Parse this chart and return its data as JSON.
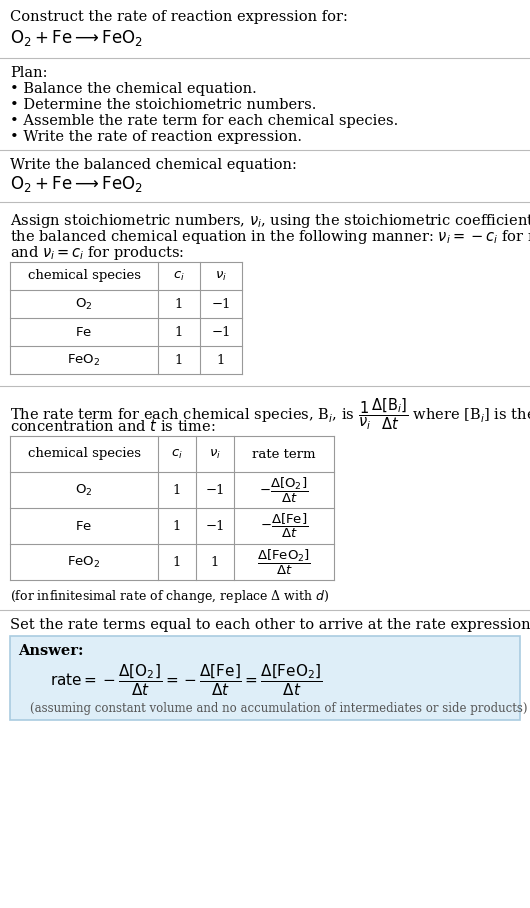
{
  "bg_color": "#ffffff",
  "text_color": "#000000",
  "line_color": "#bbbbbb",
  "table_line_color": "#999999",
  "section1_title": "Construct the rate of reaction expression for:",
  "section1_eq": "$\\mathrm{O_2 + Fe \\longrightarrow FeO_2}$",
  "section2_title": "Plan:",
  "section2_bullets": [
    "• Balance the chemical equation.",
    "• Determine the stoichiometric numbers.",
    "• Assemble the rate term for each chemical species.",
    "• Write the rate of reaction expression."
  ],
  "section3_title": "Write the balanced chemical equation:",
  "section3_eq": "$\\mathrm{O_2 + Fe \\longrightarrow FeO_2}$",
  "section4_line1": "Assign stoichiometric numbers, $\\nu_i$, using the stoichiometric coefficients, $c_i$, from",
  "section4_line2": "the balanced chemical equation in the following manner: $\\nu_i = -c_i$ for reactants",
  "section4_line3": "and $\\nu_i = c_i$ for products:",
  "table1_headers": [
    "chemical species",
    "$c_i$",
    "$\\nu_i$"
  ],
  "table1_rows": [
    [
      "$\\mathrm{O_2}$",
      "1",
      "−1"
    ],
    [
      "$\\mathrm{Fe}$",
      "1",
      "−1"
    ],
    [
      "$\\mathrm{FeO_2}$",
      "1",
      "1"
    ]
  ],
  "section5_line1a": "The rate term for each chemical species, B",
  "section5_line1b": ", is $\\dfrac{1}{\\nu_i}\\dfrac{\\Delta[\\mathrm{B}_i]}{\\Delta t}$ where [B",
  "section5_line1c": "] is the amount",
  "section5_line2": "concentration and $t$ is time:",
  "table2_headers": [
    "chemical species",
    "$c_i$",
    "$\\nu_i$",
    "rate term"
  ],
  "table2_rows": [
    [
      "$\\mathrm{O_2}$",
      "1",
      "−1",
      "$-\\dfrac{\\Delta[\\mathrm{O_2}]}{\\Delta t}$"
    ],
    [
      "$\\mathrm{Fe}$",
      "1",
      "−1",
      "$-\\dfrac{\\Delta[\\mathrm{Fe}]}{\\Delta t}$"
    ],
    [
      "$\\mathrm{FeO_2}$",
      "1",
      "1",
      "$\\dfrac{\\Delta[\\mathrm{FeO_2}]}{\\Delta t}$"
    ]
  ],
  "section5_footnote": "(for infinitesimal rate of change, replace Δ with $d$)",
  "section6_title": "Set the rate terms equal to each other to arrive at the rate expression:",
  "answer_box_color": "#deeef8",
  "answer_box_border": "#aacce0",
  "answer_label": "Answer:",
  "answer_eq": "$\\mathrm{rate} = -\\dfrac{\\Delta[\\mathrm{O_2}]}{\\Delta t} = -\\dfrac{\\Delta[\\mathrm{Fe}]}{\\Delta t} = \\dfrac{\\Delta[\\mathrm{FeO_2}]}{\\Delta t}$",
  "answer_footnote": "(assuming constant volume and no accumulation of intermediates or side products)",
  "lm": 10,
  "fs": 10.5,
  "fs_small": 9.5,
  "fs_eq": 12
}
